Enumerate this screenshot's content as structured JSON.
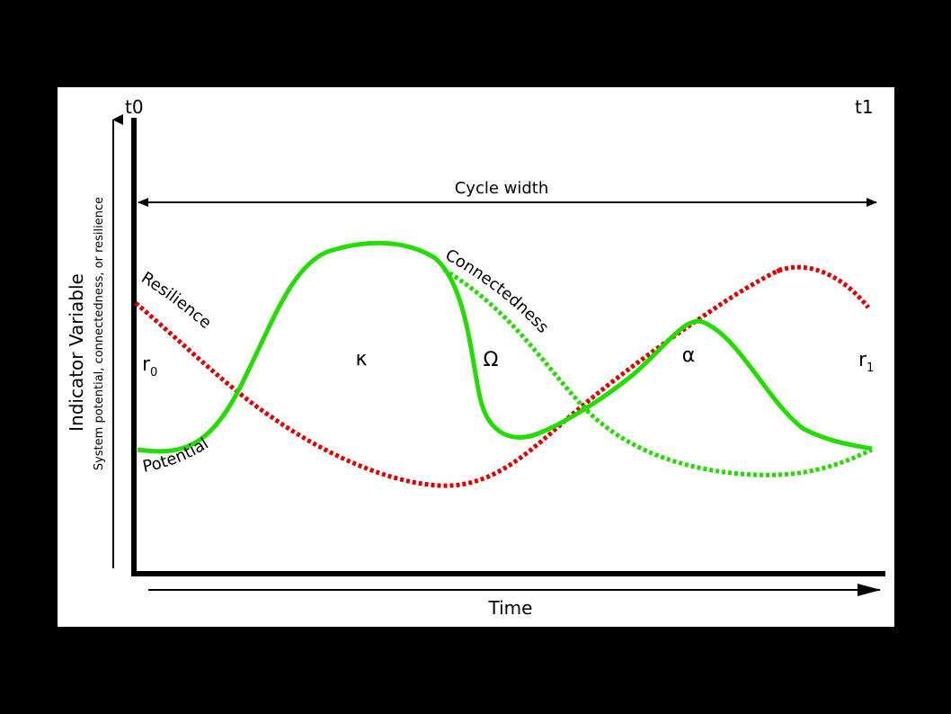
{
  "time_markers": {
    "start": "t0",
    "end": "t1"
  },
  "cycle_width_label": "Cycle width",
  "y_axis": {
    "title": "Indicator Variable",
    "subtitle": "System potential, connectedness, or resilience"
  },
  "x_axis": {
    "title": "Time"
  },
  "phases": {
    "r0": {
      "main": "r",
      "sub": "0"
    },
    "kappa": "κ",
    "omega": "Ω",
    "alpha": "α",
    "r1": {
      "main": "r",
      "sub": "1"
    }
  },
  "curves": {
    "resilience": {
      "label": "Resilience",
      "color": "#e00000"
    },
    "connectedness": {
      "label": "Connectedness",
      "color": "#22dd00"
    },
    "potential": {
      "label": "Potential",
      "color": "#22dd00"
    }
  }
}
